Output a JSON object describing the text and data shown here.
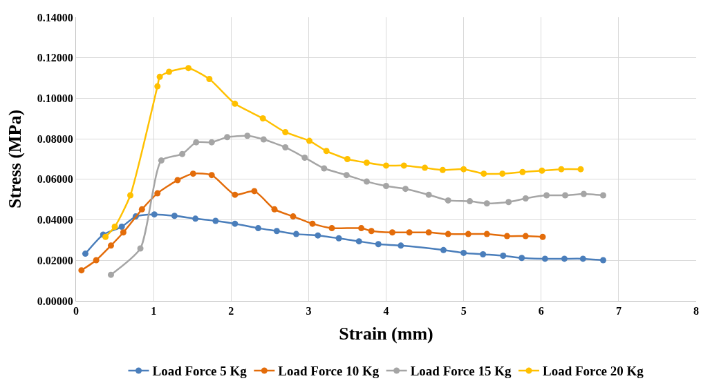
{
  "chart_data": {
    "type": "line",
    "xlabel": "Strain (mm)",
    "ylabel": "Stress (MPa)",
    "xlim": [
      0,
      8
    ],
    "xticks": [
      0,
      1,
      2,
      3,
      4,
      5,
      6,
      7,
      8
    ],
    "ylim": [
      0,
      0.14
    ],
    "yticks": [
      {
        "value": 0,
        "label": "0.00000"
      },
      {
        "value": 0.02,
        "label": "0.02000"
      },
      {
        "value": 0.04,
        "label": "0.04000"
      },
      {
        "value": 0.06,
        "label": "0.06000"
      },
      {
        "value": 0.08,
        "label": "0.08000"
      },
      {
        "value": 0.1,
        "label": "0.10000"
      },
      {
        "value": 0.12,
        "label": "0.12000"
      },
      {
        "value": 0.14,
        "label": "0.14000"
      }
    ],
    "grid": true,
    "legend": "bottom",
    "marker": "circle",
    "line_style": "solid",
    "series": [
      {
        "name": "Load Force 5 Kg",
        "color": "#4a7ebb",
        "x": [
          0.12,
          0.35,
          0.59,
          0.77,
          1.01,
          1.27,
          1.54,
          1.8,
          2.05,
          2.35,
          2.59,
          2.84,
          3.12,
          3.39,
          3.65,
          3.9,
          4.19,
          4.74,
          5.0,
          5.25,
          5.51,
          5.75,
          6.05,
          6.3,
          6.54,
          6.8
        ],
        "values": [
          0.0233,
          0.0327,
          0.0366,
          0.0417,
          0.0427,
          0.042,
          0.0406,
          0.0395,
          0.0381,
          0.0359,
          0.0345,
          0.033,
          0.0323,
          0.0309,
          0.0294,
          0.028,
          0.0273,
          0.0251,
          0.0237,
          0.023,
          0.0223,
          0.0212,
          0.0208,
          0.0208,
          0.0208,
          0.0201
        ]
      },
      {
        "name": "Load Force 10 Kg",
        "color": "#e36c0a",
        "x": [
          0.07,
          0.26,
          0.45,
          0.61,
          0.85,
          1.05,
          1.31,
          1.51,
          1.75,
          2.05,
          2.3,
          2.56,
          2.8,
          3.05,
          3.3,
          3.68,
          3.81,
          4.08,
          4.3,
          4.55,
          4.8,
          5.06,
          5.3,
          5.56,
          5.8,
          6.02
        ],
        "values": [
          0.0151,
          0.0201,
          0.0273,
          0.0338,
          0.0452,
          0.0531,
          0.0596,
          0.0628,
          0.0621,
          0.0524,
          0.0542,
          0.0452,
          0.0417,
          0.0381,
          0.0359,
          0.0359,
          0.0345,
          0.0338,
          0.0338,
          0.0338,
          0.033,
          0.033,
          0.033,
          0.032,
          0.032,
          0.0316
        ]
      },
      {
        "name": "Load Force 15 Kg",
        "color": "#a5a5a5",
        "x": [
          0.45,
          0.83,
          1.1,
          1.37,
          1.55,
          1.75,
          1.95,
          2.21,
          2.42,
          2.7,
          2.95,
          3.2,
          3.49,
          3.75,
          4.0,
          4.25,
          4.55,
          4.8,
          5.08,
          5.3,
          5.58,
          5.8,
          6.07,
          6.31,
          6.55,
          6.8
        ],
        "values": [
          0.0129,
          0.0259,
          0.0693,
          0.0725,
          0.0783,
          0.0783,
          0.0808,
          0.0815,
          0.0797,
          0.0758,
          0.0707,
          0.0654,
          0.0621,
          0.0589,
          0.0567,
          0.0553,
          0.0524,
          0.0496,
          0.0492,
          0.0481,
          0.0488,
          0.0506,
          0.0521,
          0.0521,
          0.0528,
          0.0521
        ]
      },
      {
        "name": "Load Force 20 Kg",
        "color": "#ffc000",
        "x": [
          0.38,
          0.5,
          0.7,
          1.05,
          1.08,
          1.2,
          1.45,
          1.72,
          2.05,
          2.41,
          2.7,
          3.01,
          3.23,
          3.5,
          3.75,
          4.0,
          4.23,
          4.5,
          4.73,
          5.0,
          5.26,
          5.5,
          5.76,
          6.01,
          6.26,
          6.51
        ],
        "values": [
          0.0316,
          0.0366,
          0.0521,
          0.1059,
          0.1106,
          0.1131,
          0.1149,
          0.1095,
          0.0973,
          0.0901,
          0.0833,
          0.079,
          0.074,
          0.07,
          0.0682,
          0.0668,
          0.0668,
          0.0657,
          0.0646,
          0.065,
          0.0628,
          0.0628,
          0.0636,
          0.0643,
          0.065,
          0.065
        ]
      }
    ]
  }
}
